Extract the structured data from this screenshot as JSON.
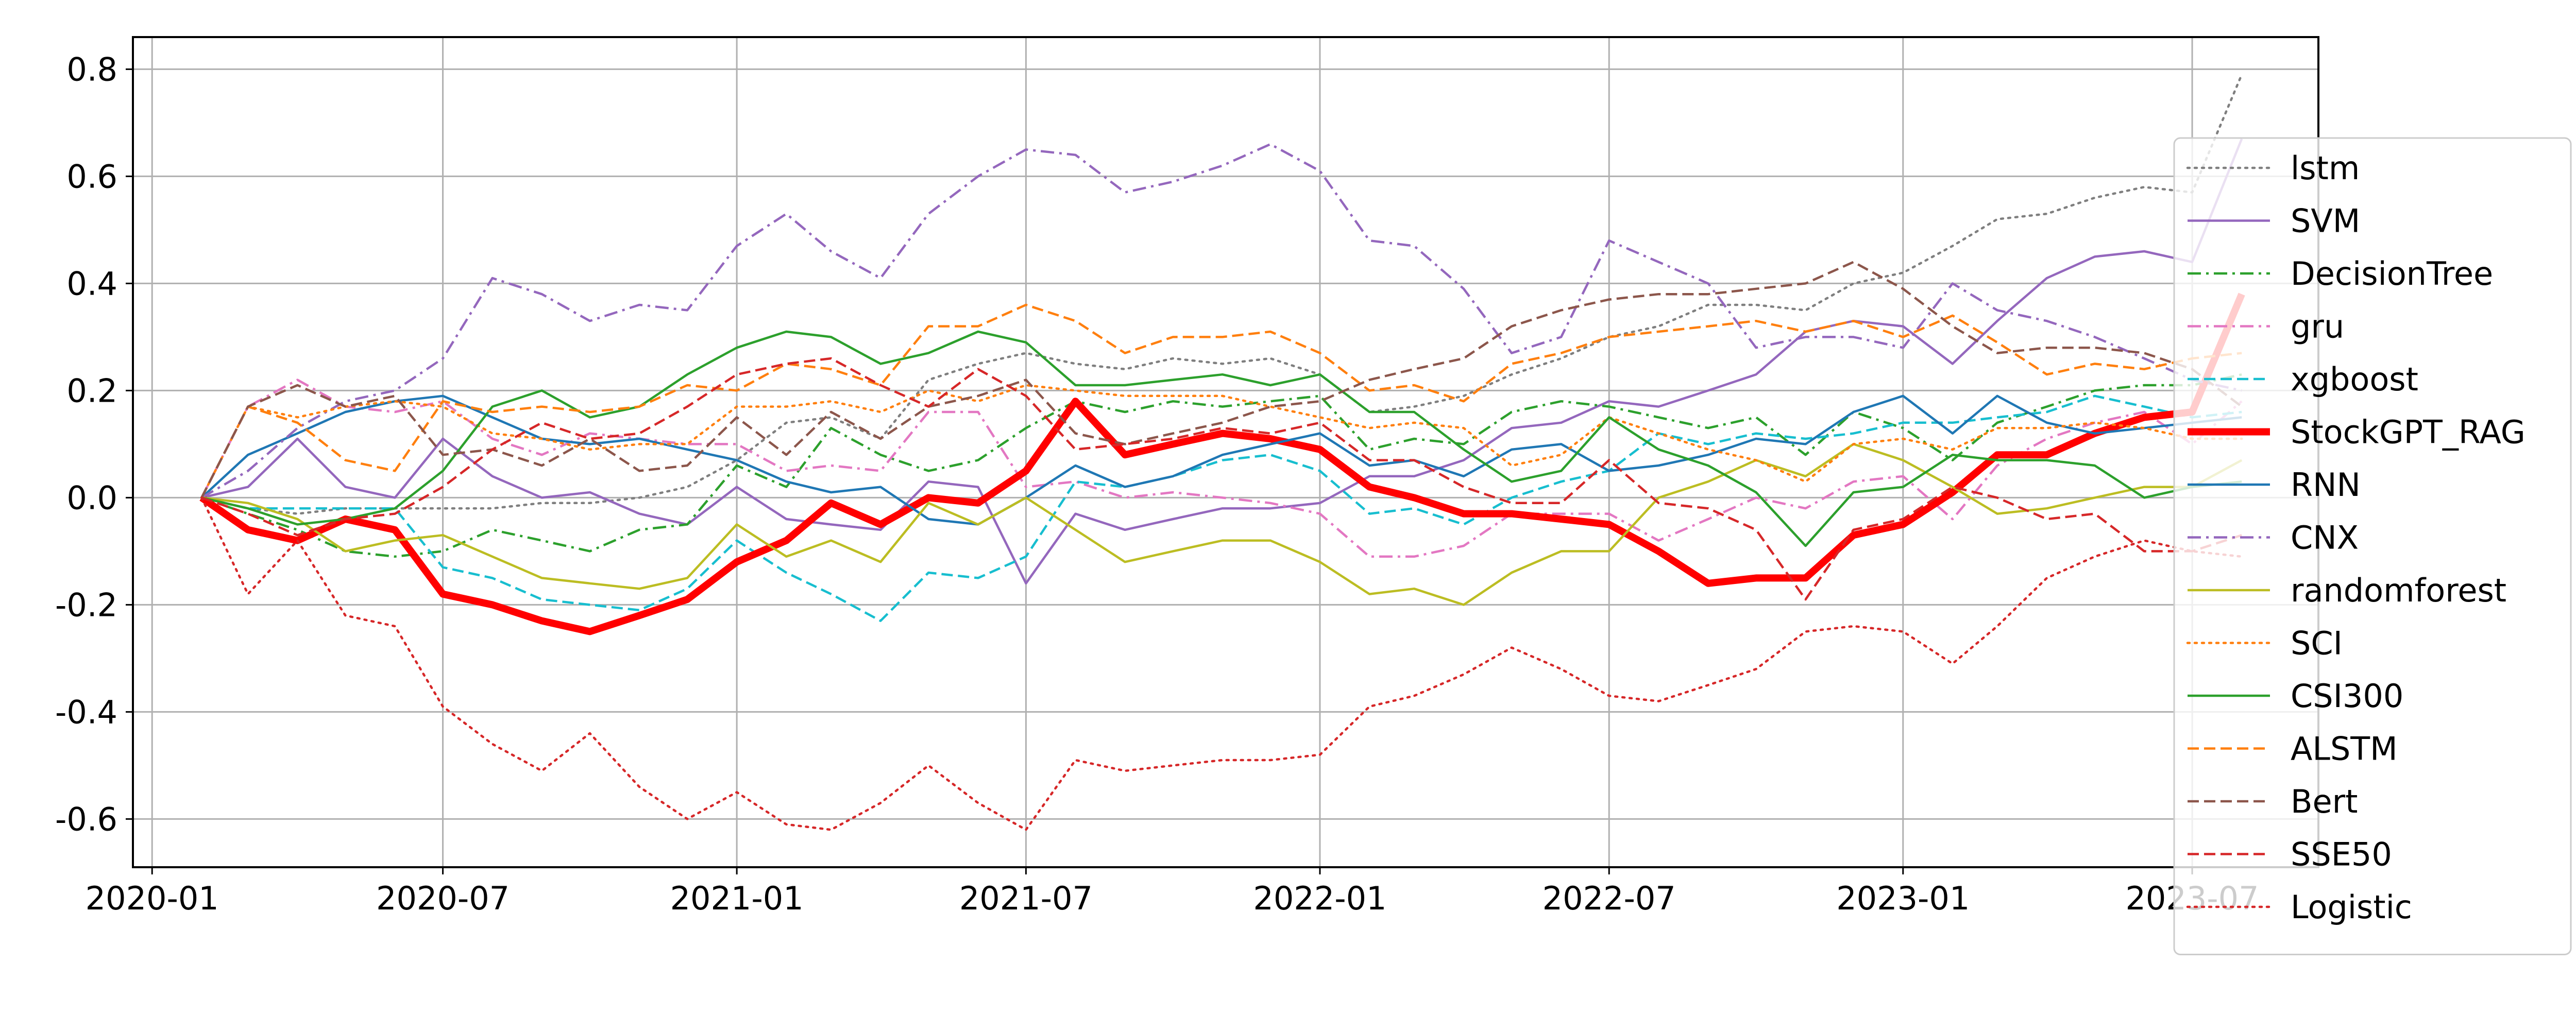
{
  "chart_data": {
    "type": "line",
    "title": "",
    "xlabel": "",
    "ylabel": "",
    "x": [
      "2020-02",
      "2020-03",
      "2020-04",
      "2020-05",
      "2020-06",
      "2020-07",
      "2020-08",
      "2020-09",
      "2020-10",
      "2020-11",
      "2020-12",
      "2021-01",
      "2021-02",
      "2021-03",
      "2021-04",
      "2021-05",
      "2021-06",
      "2021-07",
      "2021-08",
      "2021-09",
      "2021-10",
      "2021-11",
      "2021-12",
      "2022-01",
      "2022-02",
      "2022-03",
      "2022-04",
      "2022-05",
      "2022-06",
      "2022-07",
      "2022-08",
      "2022-09",
      "2022-10",
      "2022-11",
      "2022-12",
      "2023-01",
      "2023-02",
      "2023-03",
      "2023-04",
      "2023-05",
      "2023-06",
      "2023-07",
      "2023-08"
    ],
    "xticks": [
      "2020-01",
      "2020-07",
      "2021-01",
      "2021-07",
      "2022-01",
      "2022-07",
      "2023-01",
      "2023-07"
    ],
    "xlim": [
      "2019-12-20",
      "2023-09-18"
    ],
    "yticks": [
      "-0.6",
      "-0.4",
      "-0.2",
      "0.0",
      "0.2",
      "0.4",
      "0.6",
      "0.8"
    ],
    "ylim": [
      -0.69,
      0.86
    ],
    "grid": true,
    "legend_position": "right",
    "series": [
      {
        "name": "lstm",
        "color": "#7f7f7f",
        "style": "dotted",
        "width": 1,
        "values": [
          0,
          -0.02,
          -0.03,
          -0.02,
          -0.02,
          -0.02,
          -0.02,
          -0.01,
          -0.01,
          0.0,
          0.02,
          0.07,
          0.14,
          0.15,
          0.11,
          0.22,
          0.25,
          0.27,
          0.25,
          0.24,
          0.26,
          0.25,
          0.26,
          0.23,
          0.16,
          0.17,
          0.19,
          0.23,
          0.26,
          0.3,
          0.32,
          0.36,
          0.36,
          0.35,
          0.4,
          0.42,
          0.47,
          0.52,
          0.53,
          0.56,
          0.58,
          0.57,
          0.79
        ]
      },
      {
        "name": "SVM",
        "color": "#9467bd",
        "style": "solid",
        "width": 1,
        "values": [
          0,
          0.02,
          0.11,
          0.02,
          0.0,
          0.11,
          0.04,
          0.0,
          0.01,
          -0.03,
          -0.05,
          0.02,
          -0.04,
          -0.05,
          -0.06,
          0.03,
          0.02,
          -0.16,
          -0.03,
          -0.06,
          -0.04,
          -0.02,
          -0.02,
          -0.01,
          0.04,
          0.04,
          0.07,
          0.13,
          0.14,
          0.18,
          0.17,
          0.2,
          0.23,
          0.31,
          0.33,
          0.32,
          0.25,
          0.33,
          0.41,
          0.45,
          0.46,
          0.44,
          0.67
        ]
      },
      {
        "name": "DecisionTree",
        "color": "#2ca02c",
        "style": "dashdot",
        "width": 1,
        "values": [
          0,
          -0.03,
          -0.06,
          -0.1,
          -0.11,
          -0.1,
          -0.06,
          -0.08,
          -0.1,
          -0.06,
          -0.05,
          0.06,
          0.02,
          0.13,
          0.08,
          0.05,
          0.07,
          0.13,
          0.18,
          0.16,
          0.18,
          0.17,
          0.18,
          0.19,
          0.09,
          0.11,
          0.1,
          0.16,
          0.18,
          0.17,
          0.15,
          0.13,
          0.15,
          0.08,
          0.16,
          0.13,
          0.07,
          0.14,
          0.17,
          0.2,
          0.21,
          0.21,
          0.23
        ]
      },
      {
        "name": "gru",
        "color": "#e377c2",
        "style": "dashdot",
        "width": 1,
        "values": [
          0,
          0.17,
          0.22,
          0.17,
          0.16,
          0.18,
          0.11,
          0.08,
          0.12,
          0.11,
          0.1,
          0.1,
          0.05,
          0.06,
          0.05,
          0.16,
          0.16,
          0.02,
          0.03,
          0.0,
          0.01,
          0.0,
          -0.01,
          -0.03,
          -0.11,
          -0.11,
          -0.09,
          -0.03,
          -0.03,
          -0.03,
          -0.08,
          -0.04,
          0.0,
          -0.02,
          0.03,
          0.04,
          -0.04,
          0.06,
          0.11,
          0.14,
          0.16,
          0.1,
          0.18
        ]
      },
      {
        "name": "xgboost",
        "color": "#17becf",
        "style": "dashed",
        "width": 1,
        "values": [
          0,
          -0.02,
          -0.02,
          -0.02,
          -0.02,
          -0.13,
          -0.15,
          -0.19,
          -0.2,
          -0.21,
          -0.17,
          -0.08,
          -0.14,
          -0.18,
          -0.23,
          -0.14,
          -0.15,
          -0.11,
          0.03,
          0.02,
          0.04,
          0.07,
          0.08,
          0.05,
          -0.03,
          -0.02,
          -0.05,
          0.0,
          0.03,
          0.05,
          0.12,
          0.1,
          0.12,
          0.11,
          0.12,
          0.14,
          0.14,
          0.15,
          0.16,
          0.19,
          0.17,
          0.15,
          0.16
        ]
      },
      {
        "name": "StockGPT_RAG",
        "color": "#ff0000",
        "style": "solid",
        "width": 3,
        "values": [
          0,
          -0.06,
          -0.08,
          -0.04,
          -0.06,
          -0.18,
          -0.2,
          -0.23,
          -0.25,
          -0.22,
          -0.19,
          -0.12,
          -0.08,
          -0.01,
          -0.05,
          0.0,
          -0.01,
          0.05,
          0.18,
          0.08,
          0.1,
          0.12,
          0.11,
          0.09,
          0.02,
          0.0,
          -0.03,
          -0.03,
          -0.04,
          -0.05,
          -0.1,
          -0.16,
          -0.15,
          -0.15,
          -0.07,
          -0.05,
          0.01,
          0.08,
          0.08,
          0.12,
          0.15,
          0.16,
          0.38
        ]
      },
      {
        "name": "RNN",
        "color": "#1f77b4",
        "style": "solid",
        "width": 1,
        "values": [
          0,
          0.08,
          0.12,
          0.16,
          0.18,
          0.19,
          0.15,
          0.11,
          0.1,
          0.11,
          0.09,
          0.07,
          0.03,
          0.01,
          0.02,
          -0.04,
          -0.05,
          0.0,
          0.06,
          0.02,
          0.04,
          0.08,
          0.1,
          0.12,
          0.06,
          0.07,
          0.04,
          0.09,
          0.1,
          0.05,
          0.06,
          0.08,
          0.11,
          0.1,
          0.16,
          0.19,
          0.12,
          0.19,
          0.14,
          0.12,
          0.13,
          0.14,
          0.15
        ]
      },
      {
        "name": "CNX",
        "color": "#9467bd",
        "style": "dashdot",
        "width": 1,
        "values": [
          0,
          0.05,
          0.13,
          0.18,
          0.2,
          0.26,
          0.41,
          0.38,
          0.33,
          0.36,
          0.35,
          0.47,
          0.53,
          0.46,
          0.41,
          0.53,
          0.6,
          0.65,
          0.64,
          0.57,
          0.59,
          0.62,
          0.66,
          0.61,
          0.48,
          0.47,
          0.39,
          0.27,
          0.3,
          0.48,
          0.44,
          0.4,
          0.28,
          0.3,
          0.3,
          0.28,
          0.4,
          0.35,
          0.33,
          0.3,
          0.26,
          0.22,
          0.2
        ]
      },
      {
        "name": "randomforest",
        "color": "#bcbd22",
        "style": "solid",
        "width": 1,
        "values": [
          0,
          -0.01,
          -0.04,
          -0.1,
          -0.08,
          -0.07,
          -0.11,
          -0.15,
          -0.16,
          -0.17,
          -0.15,
          -0.05,
          -0.11,
          -0.08,
          -0.12,
          -0.01,
          -0.05,
          0.0,
          -0.06,
          -0.12,
          -0.1,
          -0.08,
          -0.08,
          -0.12,
          -0.18,
          -0.17,
          -0.2,
          -0.14,
          -0.1,
          -0.1,
          0.0,
          0.03,
          0.07,
          0.04,
          0.1,
          0.07,
          0.02,
          -0.03,
          -0.02,
          0.0,
          0.02,
          0.02,
          0.07
        ]
      },
      {
        "name": "SCI",
        "color": "#ff7f0e",
        "style": "dotted",
        "width": 1,
        "values": [
          0,
          0.17,
          0.15,
          0.17,
          0.18,
          0.17,
          0.12,
          0.11,
          0.09,
          0.1,
          0.1,
          0.17,
          0.17,
          0.18,
          0.16,
          0.2,
          0.18,
          0.21,
          0.2,
          0.19,
          0.19,
          0.19,
          0.17,
          0.15,
          0.13,
          0.14,
          0.13,
          0.06,
          0.08,
          0.15,
          0.12,
          0.09,
          0.07,
          0.03,
          0.1,
          0.11,
          0.09,
          0.13,
          0.13,
          0.14,
          0.13,
          0.11,
          0.11
        ]
      },
      {
        "name": "CSI300",
        "color": "#2ca02c",
        "style": "solid",
        "width": 1,
        "values": [
          0,
          -0.02,
          -0.05,
          -0.04,
          -0.02,
          0.05,
          0.17,
          0.2,
          0.15,
          0.17,
          0.23,
          0.28,
          0.31,
          0.3,
          0.25,
          0.27,
          0.31,
          0.29,
          0.21,
          0.21,
          0.22,
          0.23,
          0.21,
          0.23,
          0.16,
          0.16,
          0.09,
          0.03,
          0.05,
          0.15,
          0.09,
          0.06,
          0.01,
          -0.09,
          0.01,
          0.02,
          0.08,
          0.07,
          0.07,
          0.06,
          0.0,
          0.02,
          0.03
        ]
      },
      {
        "name": "ALSTM",
        "color": "#ff7f0e",
        "style": "dashed",
        "width": 1,
        "values": [
          0,
          0.17,
          0.14,
          0.07,
          0.05,
          0.18,
          0.16,
          0.17,
          0.16,
          0.17,
          0.21,
          0.2,
          0.25,
          0.24,
          0.21,
          0.32,
          0.32,
          0.36,
          0.33,
          0.27,
          0.3,
          0.3,
          0.31,
          0.27,
          0.2,
          0.21,
          0.18,
          0.25,
          0.27,
          0.3,
          0.31,
          0.32,
          0.33,
          0.31,
          0.33,
          0.3,
          0.34,
          0.29,
          0.23,
          0.25,
          0.24,
          0.26,
          0.27
        ]
      },
      {
        "name": "Bert",
        "color": "#8c564b",
        "style": "dashed",
        "width": 1,
        "values": [
          0,
          0.17,
          0.21,
          0.17,
          0.19,
          0.08,
          0.09,
          0.06,
          0.11,
          0.05,
          0.06,
          0.15,
          0.08,
          0.16,
          0.11,
          0.17,
          0.19,
          0.22,
          0.12,
          0.1,
          0.12,
          0.14,
          0.17,
          0.18,
          0.22,
          0.24,
          0.26,
          0.32,
          0.35,
          0.37,
          0.38,
          0.38,
          0.39,
          0.4,
          0.44,
          0.39,
          0.32,
          0.27,
          0.28,
          0.28,
          0.27,
          0.24,
          0.17
        ]
      },
      {
        "name": "SSE50",
        "color": "#d62728",
        "style": "dashed",
        "width": 1,
        "values": [
          0,
          -0.03,
          -0.07,
          -0.04,
          -0.03,
          0.02,
          0.09,
          0.14,
          0.11,
          0.12,
          0.17,
          0.23,
          0.25,
          0.26,
          0.21,
          0.17,
          0.24,
          0.19,
          0.09,
          0.1,
          0.11,
          0.13,
          0.12,
          0.14,
          0.07,
          0.07,
          0.02,
          -0.01,
          -0.01,
          0.07,
          -0.01,
          -0.02,
          -0.06,
          -0.19,
          -0.06,
          -0.04,
          0.02,
          0.0,
          -0.04,
          -0.03,
          -0.1,
          -0.1,
          -0.07
        ]
      },
      {
        "name": "Logistic",
        "color": "#d62728",
        "style": "dotted",
        "width": 1,
        "values": [
          0,
          -0.18,
          -0.08,
          -0.22,
          -0.24,
          -0.39,
          -0.46,
          -0.51,
          -0.44,
          -0.54,
          -0.6,
          -0.55,
          -0.61,
          -0.62,
          -0.57,
          -0.5,
          -0.57,
          -0.62,
          -0.49,
          -0.51,
          -0.5,
          -0.49,
          -0.49,
          -0.48,
          -0.39,
          -0.37,
          -0.33,
          -0.28,
          -0.32,
          -0.37,
          -0.38,
          -0.35,
          -0.32,
          -0.25,
          -0.24,
          -0.25,
          -0.31,
          -0.24,
          -0.15,
          -0.11,
          -0.08,
          -0.1,
          -0.11
        ]
      }
    ]
  }
}
